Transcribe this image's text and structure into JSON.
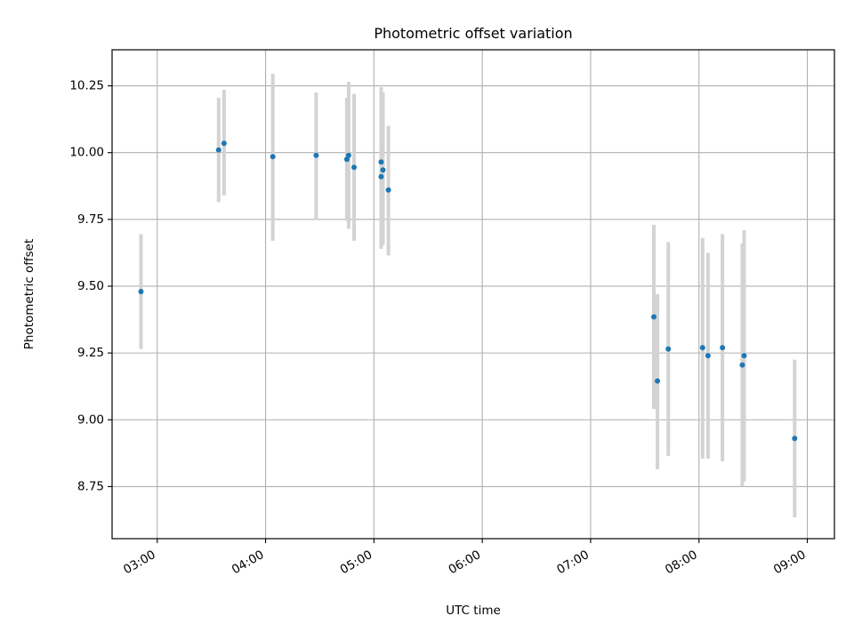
{
  "chart_data": {
    "type": "scatter",
    "title": "Photometric offset variation",
    "xlabel": "UTC time",
    "ylabel": "Photometric offset",
    "xlim": [
      "02:35",
      "09:15"
    ],
    "ylim": [
      8.555,
      10.385
    ],
    "x_ticks": [
      "03:00",
      "04:00",
      "05:00",
      "06:00",
      "07:00",
      "08:00",
      "09:00"
    ],
    "y_ticks": [
      "8.75",
      "9.00",
      "9.25",
      "9.50",
      "9.75",
      "10.00",
      "10.25"
    ],
    "grid": true,
    "point_color": "#1f77b4",
    "errorbar_color": "#d3d3d3",
    "series": [
      {
        "points": [
          {
            "x": "02:51",
            "y": 9.48,
            "low": 9.265,
            "high": 9.695
          },
          {
            "x": "03:34",
            "y": 10.01,
            "low": 9.815,
            "high": 10.205
          },
          {
            "x": "03:37",
            "y": 10.035,
            "low": 9.84,
            "high": 10.235
          },
          {
            "x": "04:04",
            "y": 9.985,
            "low": 9.67,
            "high": 10.295
          },
          {
            "x": "04:28",
            "y": 9.99,
            "low": 9.75,
            "high": 10.225
          },
          {
            "x": "04:45",
            "y": 9.975,
            "low": 9.745,
            "high": 10.205
          },
          {
            "x": "04:46",
            "y": 9.99,
            "low": 9.715,
            "high": 10.265
          },
          {
            "x": "04:49",
            "y": 9.945,
            "low": 9.67,
            "high": 10.22
          },
          {
            "x": "05:04",
            "y": 9.91,
            "low": 9.64,
            "high": 10.175
          },
          {
            "x": "05:04",
            "y": 9.965,
            "low": 9.705,
            "high": 10.245
          },
          {
            "x": "05:05",
            "y": 9.935,
            "low": 9.655,
            "high": 10.225
          },
          {
            "x": "05:08",
            "y": 9.86,
            "low": 9.615,
            "high": 10.1
          },
          {
            "x": "07:35",
            "y": 9.385,
            "low": 9.04,
            "high": 9.73
          },
          {
            "x": "07:37",
            "y": 9.145,
            "low": 8.815,
            "high": 9.47
          },
          {
            "x": "07:43",
            "y": 9.265,
            "low": 8.865,
            "high": 9.665
          },
          {
            "x": "08:02",
            "y": 9.27,
            "low": 8.855,
            "high": 9.68
          },
          {
            "x": "08:05",
            "y": 9.24,
            "low": 8.855,
            "high": 9.625
          },
          {
            "x": "08:13",
            "y": 9.27,
            "low": 8.845,
            "high": 9.695
          },
          {
            "x": "08:24",
            "y": 9.205,
            "low": 8.75,
            "high": 9.66
          },
          {
            "x": "08:25",
            "y": 9.24,
            "low": 8.77,
            "high": 9.71
          },
          {
            "x": "08:53",
            "y": 8.93,
            "low": 8.635,
            "high": 9.225
          }
        ]
      }
    ]
  }
}
